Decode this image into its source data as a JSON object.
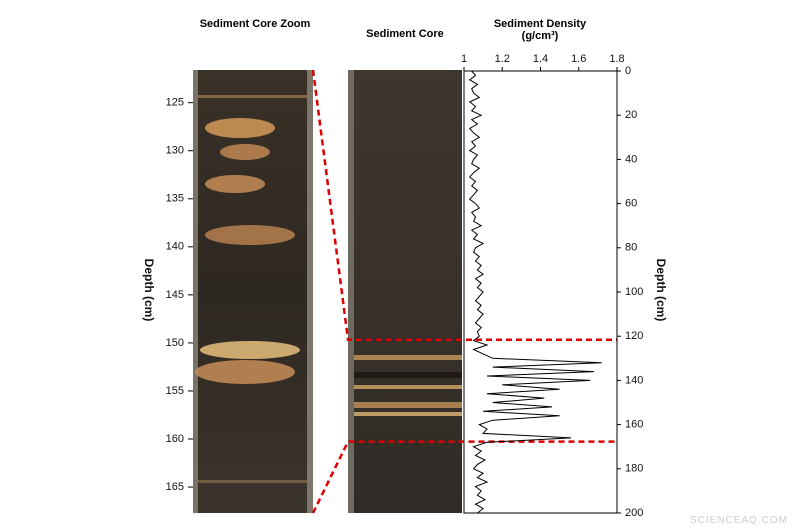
{
  "chart_data": [
    {
      "type": "image",
      "title": "Sediment Core Zoom",
      "ylabel": "Depth (cm)",
      "ylim": [
        121.6,
        167.7
      ],
      "yticks": [
        125,
        130,
        135,
        140,
        145,
        150,
        155,
        160,
        165
      ]
    },
    {
      "type": "image",
      "title": "Sediment Core"
    },
    {
      "type": "line",
      "title": "Sediment Density",
      "xlabel": "(g/cm³)",
      "ylabel": "Depth (cm)",
      "color": "#000000",
      "xlim": [
        1,
        1.8
      ],
      "xticks": [
        1,
        1.2,
        1.4,
        1.6,
        1.8
      ],
      "ylim": [
        0,
        200
      ],
      "yticks": [
        0,
        20,
        40,
        60,
        80,
        100,
        120,
        140,
        160,
        180,
        200
      ],
      "y": [
        0,
        2,
        4,
        6,
        8,
        10,
        12,
        14,
        16,
        18,
        20,
        22,
        24,
        26,
        28,
        30,
        32,
        34,
        36,
        38,
        40,
        42,
        44,
        46,
        48,
        50,
        52,
        54,
        56,
        58,
        60,
        62,
        64,
        66,
        68,
        70,
        72,
        74,
        76,
        78,
        80,
        82,
        84,
        86,
        88,
        90,
        92,
        94,
        96,
        98,
        100,
        102,
        104,
        106,
        108,
        110,
        112,
        114,
        116,
        118,
        120,
        122,
        124,
        126,
        128,
        130,
        132,
        134,
        136,
        138,
        140,
        142,
        144,
        146,
        148,
        150,
        152,
        154,
        156,
        158,
        160,
        162,
        164,
        166,
        168,
        170,
        172,
        174,
        176,
        178,
        180,
        182,
        184,
        186,
        188,
        190,
        192,
        194,
        196,
        198,
        200
      ],
      "values": [
        1.04,
        1.06,
        1.03,
        1.07,
        1.04,
        1.05,
        1.08,
        1.03,
        1.06,
        1.04,
        1.09,
        1.04,
        1.07,
        1.03,
        1.05,
        1.08,
        1.04,
        1.06,
        1.03,
        1.07,
        1.05,
        1.04,
        1.08,
        1.05,
        1.03,
        1.06,
        1.04,
        1.07,
        1.05,
        1.03,
        1.06,
        1.08,
        1.04,
        1.06,
        1.05,
        1.09,
        1.04,
        1.07,
        1.05,
        1.1,
        1.06,
        1.05,
        1.08,
        1.06,
        1.09,
        1.07,
        1.1,
        1.06,
        1.09,
        1.07,
        1.1,
        1.08,
        1.06,
        1.09,
        1.07,
        1.1,
        1.08,
        1.06,
        1.09,
        1.07,
        1.08,
        1.05,
        1.12,
        1.05,
        1.1,
        1.15,
        1.72,
        1.15,
        1.68,
        1.12,
        1.66,
        1.2,
        1.5,
        1.12,
        1.42,
        1.15,
        1.46,
        1.1,
        1.5,
        1.15,
        1.08,
        1.12,
        1.1,
        1.56,
        1.12,
        1.05,
        1.09,
        1.06,
        1.11,
        1.07,
        1.05,
        1.1,
        1.07,
        1.12,
        1.06,
        1.09,
        1.07,
        1.11,
        1.06,
        1.1,
        1.07
      ]
    }
  ],
  "watermark": "SCIENCEAQ.COM"
}
